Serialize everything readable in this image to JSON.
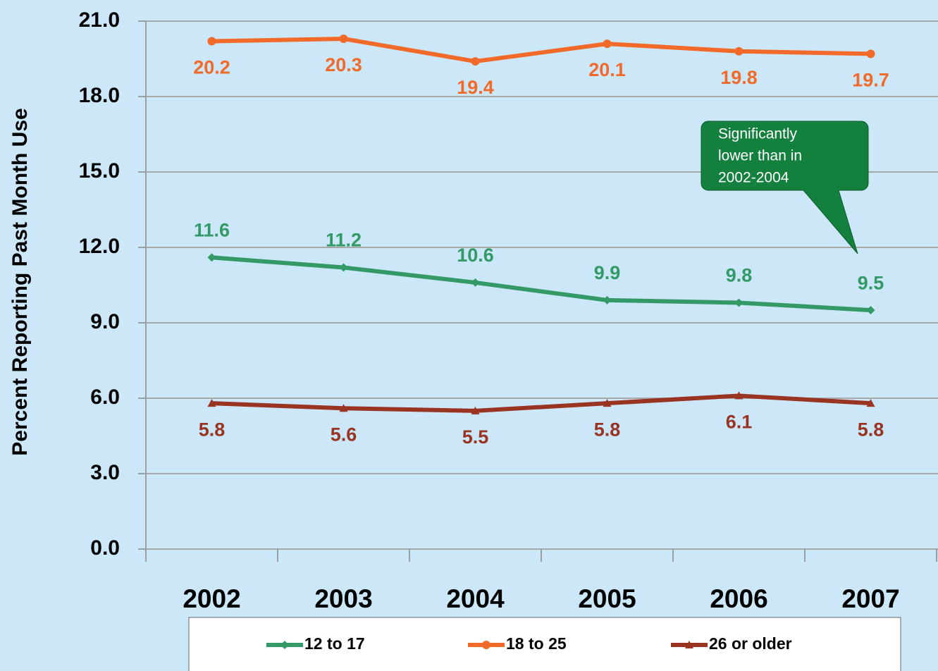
{
  "chart_data": {
    "type": "line",
    "y_label": "Percent Reporting Past Month Use",
    "categories": [
      "2002",
      "2003",
      "2004",
      "2005",
      "2006",
      "2007"
    ],
    "series": [
      {
        "name": "12 to 17",
        "color": "#339966",
        "marker": "diamond",
        "label_position": "above",
        "values": [
          11.6,
          11.2,
          10.6,
          9.9,
          9.8,
          9.5
        ]
      },
      {
        "name": "18 to 25",
        "color": "#f26a2a",
        "marker": "circle",
        "label_position": "below",
        "values": [
          20.2,
          20.3,
          19.4,
          20.1,
          19.8,
          19.7
        ]
      },
      {
        "name": "26 or older",
        "color": "#993322",
        "marker": "triangle",
        "label_position": "below",
        "values": [
          5.8,
          5.6,
          5.5,
          5.8,
          6.1,
          5.8
        ]
      }
    ],
    "ylim": [
      0,
      21
    ],
    "yticks": [
      {
        "value": 0,
        "label": "0.0"
      },
      {
        "value": 3,
        "label": "3.0"
      },
      {
        "value": 6,
        "label": "6.0"
      },
      {
        "value": 9,
        "label": "9.0"
      },
      {
        "value": 12,
        "label": "12.0"
      },
      {
        "value": 15,
        "label": "15.0"
      },
      {
        "value": 18,
        "label": "18.0"
      },
      {
        "value": 21,
        "label": "21.0"
      }
    ],
    "grid": true,
    "legend": "bottom",
    "annotation": {
      "lines": [
        "Significantly",
        "lower than in",
        "2002-2004"
      ],
      "color": "#13803e"
    }
  }
}
